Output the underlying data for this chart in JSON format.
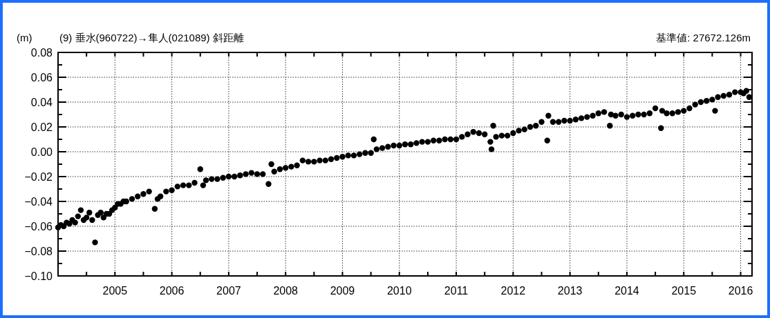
{
  "chart_data": {
    "type": "scatter",
    "title": "(9) 垂水(960722)→隼人(021089) 斜距離",
    "ylabel": "(m)",
    "annotations": [
      "基準値: 27672.126m"
    ],
    "xlim": [
      2004.0,
      2016.2
    ],
    "xticks": [
      {
        "value": 2004.5,
        "label": null
      },
      2005,
      {
        "value": 2005.5,
        "label": null
      },
      2006,
      {
        "value": 2006.5,
        "label": null
      },
      2007,
      {
        "value": 2007.5,
        "label": null
      },
      2008,
      {
        "value": 2008.5,
        "label": null
      },
      2009,
      {
        "value": 2009.5,
        "label": null
      },
      2010,
      {
        "value": 2010.5,
        "label": null
      },
      2011,
      {
        "value": 2011.5,
        "label": null
      },
      2012,
      {
        "value": 2012.5,
        "label": null
      },
      2013,
      {
        "value": 2013.5,
        "label": null
      },
      2014,
      {
        "value": 2014.5,
        "label": null
      },
      2015,
      {
        "value": 2015.5,
        "label": null
      },
      2016
    ],
    "ylim": [
      -0.1,
      0.08
    ],
    "yticks": [
      {
        "value": -0.1,
        "label": "−0.10"
      },
      {
        "value": -0.09,
        "label": null
      },
      {
        "value": -0.08,
        "label": "−0.08"
      },
      {
        "value": -0.07,
        "label": null
      },
      {
        "value": -0.06,
        "label": "−0.06"
      },
      {
        "value": -0.05,
        "label": null
      },
      {
        "value": -0.04,
        "label": "−0.04"
      },
      {
        "value": -0.03,
        "label": null
      },
      {
        "value": -0.02,
        "label": "−0.02"
      },
      {
        "value": -0.01,
        "label": null
      },
      {
        "value": 0,
        "label": "0.00"
      },
      {
        "value": 0.01,
        "label": null
      },
      {
        "value": 0.02,
        "label": "0.02"
      },
      {
        "value": 0.03,
        "label": null
      },
      {
        "value": 0.04,
        "label": "0.04"
      },
      {
        "value": 0.05,
        "label": null
      },
      {
        "value": 0.06,
        "label": "0.06"
      },
      {
        "value": 0.07,
        "label": null
      },
      {
        "value": 0.08,
        "label": "0.08"
      }
    ],
    "grid": true,
    "marker": "circle",
    "series": [
      {
        "color": "#000000",
        "x": [
          2004.0,
          2004.05,
          2004.1,
          2004.15,
          2004.2,
          2004.25,
          2004.3,
          2004.35,
          2004.4,
          2004.45,
          2004.5,
          2004.55,
          2004.6,
          2004.65,
          2004.7,
          2004.75,
          2004.8,
          2004.85,
          2004.9,
          2004.95,
          2005.0,
          2005.05,
          2005.1,
          2005.15,
          2005.2,
          2005.3,
          2005.4,
          2005.5,
          2005.6,
          2005.7,
          2005.75,
          2005.8,
          2005.9,
          2006.0,
          2006.1,
          2006.2,
          2006.3,
          2006.4,
          2006.5,
          2006.55,
          2006.6,
          2006.7,
          2006.8,
          2006.9,
          2007.0,
          2007.1,
          2007.2,
          2007.3,
          2007.4,
          2007.5,
          2007.6,
          2007.7,
          2007.75,
          2007.8,
          2007.9,
          2008.0,
          2008.1,
          2008.2,
          2008.3,
          2008.4,
          2008.5,
          2008.6,
          2008.7,
          2008.8,
          2008.9,
          2009.0,
          2009.1,
          2009.2,
          2009.3,
          2009.4,
          2009.5,
          2009.55,
          2009.6,
          2009.7,
          2009.8,
          2009.9,
          2010.0,
          2010.1,
          2010.2,
          2010.3,
          2010.4,
          2010.5,
          2010.6,
          2010.7,
          2010.8,
          2010.9,
          2011.0,
          2011.1,
          2011.2,
          2011.3,
          2011.4,
          2011.5,
          2011.6,
          2011.62,
          2011.65,
          2011.7,
          2011.8,
          2011.9,
          2012.0,
          2012.1,
          2012.2,
          2012.3,
          2012.4,
          2012.5,
          2012.6,
          2012.62,
          2012.7,
          2012.8,
          2012.9,
          2013.0,
          2013.1,
          2013.2,
          2013.3,
          2013.4,
          2013.5,
          2013.6,
          2013.7,
          2013.72,
          2013.8,
          2013.9,
          2014.0,
          2014.1,
          2014.2,
          2014.3,
          2014.4,
          2014.5,
          2014.6,
          2014.62,
          2014.7,
          2014.8,
          2014.9,
          2015.0,
          2015.1,
          2015.2,
          2015.3,
          2015.4,
          2015.5,
          2015.55,
          2015.6,
          2015.7,
          2015.8,
          2015.9,
          2016.0,
          2016.05,
          2016.1,
          2016.15
        ],
        "values": [
          -0.061,
          -0.059,
          -0.06,
          -0.057,
          -0.058,
          -0.055,
          -0.057,
          -0.052,
          -0.047,
          -0.055,
          -0.053,
          -0.049,
          -0.055,
          -0.073,
          -0.051,
          -0.049,
          -0.053,
          -0.05,
          -0.05,
          -0.047,
          -0.045,
          -0.042,
          -0.042,
          -0.04,
          -0.04,
          -0.038,
          -0.036,
          -0.034,
          -0.032,
          -0.046,
          -0.038,
          -0.036,
          -0.032,
          -0.031,
          -0.028,
          -0.027,
          -0.027,
          -0.025,
          -0.014,
          -0.027,
          -0.023,
          -0.022,
          -0.022,
          -0.021,
          -0.02,
          -0.02,
          -0.019,
          -0.018,
          -0.017,
          -0.018,
          -0.018,
          -0.026,
          -0.01,
          -0.016,
          -0.014,
          -0.013,
          -0.012,
          -0.011,
          -0.007,
          -0.008,
          -0.008,
          -0.007,
          -0.007,
          -0.006,
          -0.005,
          -0.004,
          -0.003,
          -0.003,
          -0.002,
          -0.001,
          -0.001,
          0.01,
          0.002,
          0.003,
          0.004,
          0.005,
          0.005,
          0.006,
          0.006,
          0.007,
          0.008,
          0.008,
          0.009,
          0.009,
          0.01,
          0.01,
          0.01,
          0.012,
          0.014,
          0.016,
          0.015,
          0.014,
          0.008,
          0.002,
          0.021,
          0.012,
          0.013,
          0.013,
          0.015,
          0.017,
          0.018,
          0.02,
          0.021,
          0.024,
          0.009,
          0.029,
          0.024,
          0.024,
          0.025,
          0.025,
          0.026,
          0.027,
          0.028,
          0.029,
          0.031,
          0.032,
          0.021,
          0.03,
          0.029,
          0.03,
          0.028,
          0.029,
          0.03,
          0.03,
          0.031,
          0.035,
          0.019,
          0.033,
          0.031,
          0.031,
          0.032,
          0.033,
          0.035,
          0.038,
          0.04,
          0.041,
          0.042,
          0.033,
          0.044,
          0.045,
          0.046,
          0.048,
          0.048,
          0.047,
          0.049,
          0.044
        ]
      }
    ]
  }
}
